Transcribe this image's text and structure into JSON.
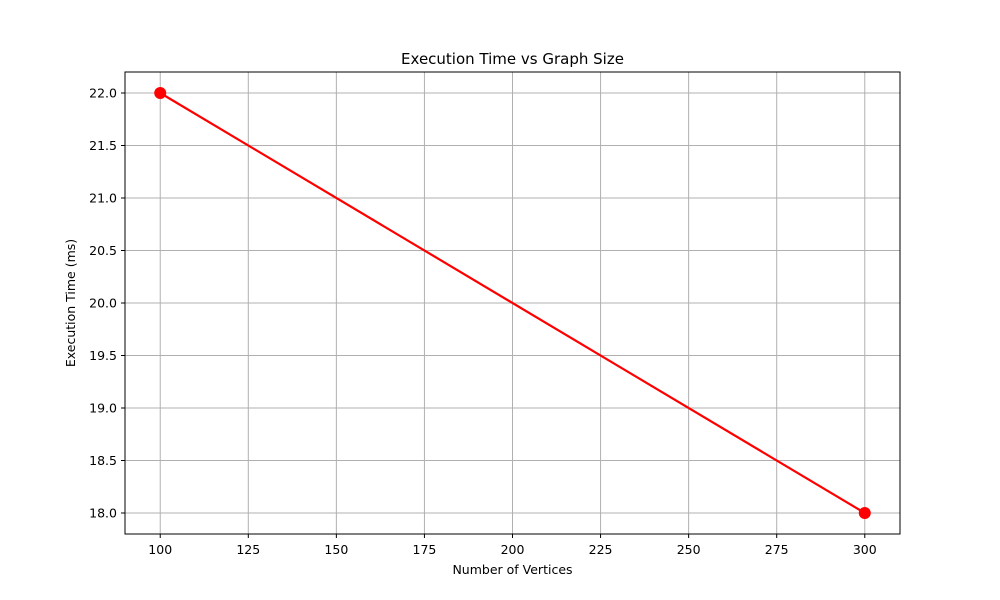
{
  "chart_data": {
    "type": "line",
    "title": "Execution Time vs Graph Size",
    "xlabel": "Number of Vertices",
    "ylabel": "Execution Time (ms)",
    "x": [
      100,
      300
    ],
    "series": [
      {
        "values": [
          22.0,
          18.0
        ]
      }
    ],
    "xlim": [
      90,
      310
    ],
    "ylim": [
      17.8,
      22.2
    ],
    "xticks": [
      100,
      125,
      150,
      175,
      200,
      225,
      250,
      275,
      300
    ],
    "yticks": [
      18.0,
      18.5,
      19.0,
      19.5,
      20.0,
      20.5,
      21.0,
      21.5,
      22.0
    ],
    "xtick_labels": [
      "100",
      "125",
      "150",
      "175",
      "200",
      "225",
      "250",
      "275",
      "300"
    ],
    "ytick_labels": [
      "18.0",
      "18.5",
      "19.0",
      "19.5",
      "20.0",
      "20.5",
      "21.0",
      "21.5",
      "22.0"
    ],
    "grid": true,
    "marker": "circle",
    "colors": {
      "line": "#ff0000",
      "grid": "#b0b0b0",
      "axes": "#000000"
    }
  }
}
